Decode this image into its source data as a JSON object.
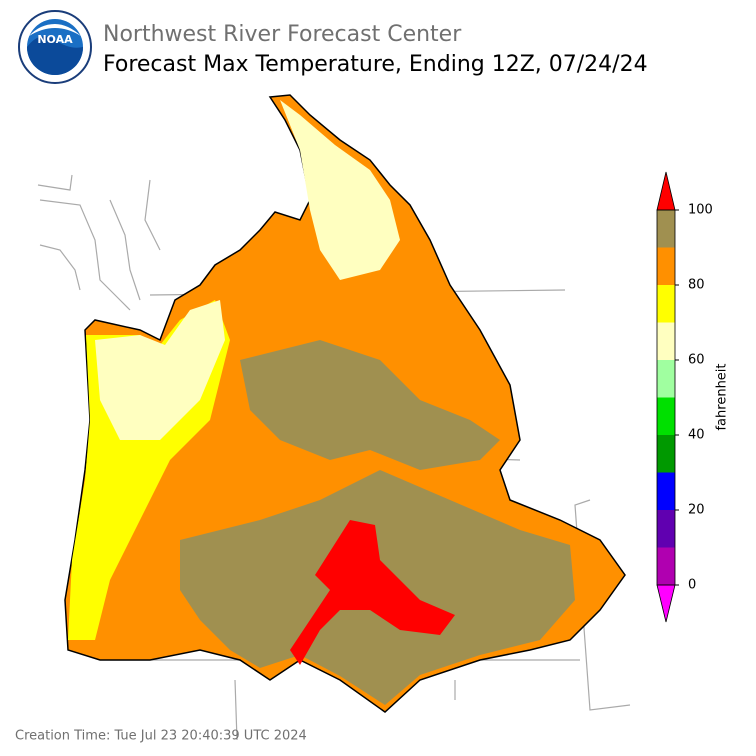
{
  "header": {
    "agency": "Northwest River Forecast Center",
    "title": "Forecast Max Temperature, Ending 12Z, 07/24/24"
  },
  "logo": {
    "text": "NOAA"
  },
  "colorbar": {
    "label": "fahrenheit",
    "bounds": [
      0,
      10,
      20,
      30,
      40,
      50,
      60,
      70,
      80,
      90,
      100
    ],
    "colors": [
      "#b000b0",
      "#6000b0",
      "#0000ff",
      "#009900",
      "#00e000",
      "#a0ffa0",
      "#ffffc0",
      "#ffff00",
      "#ff9000",
      "#a09050"
    ],
    "under_color": "#ff00ff",
    "over_color": "#ff0000",
    "ticks": [
      0,
      20,
      40,
      60,
      80,
      100
    ]
  },
  "footer": {
    "creation_time": "Creation Time: Tue Jul 23 20:40:39 UTC 2024"
  }
}
